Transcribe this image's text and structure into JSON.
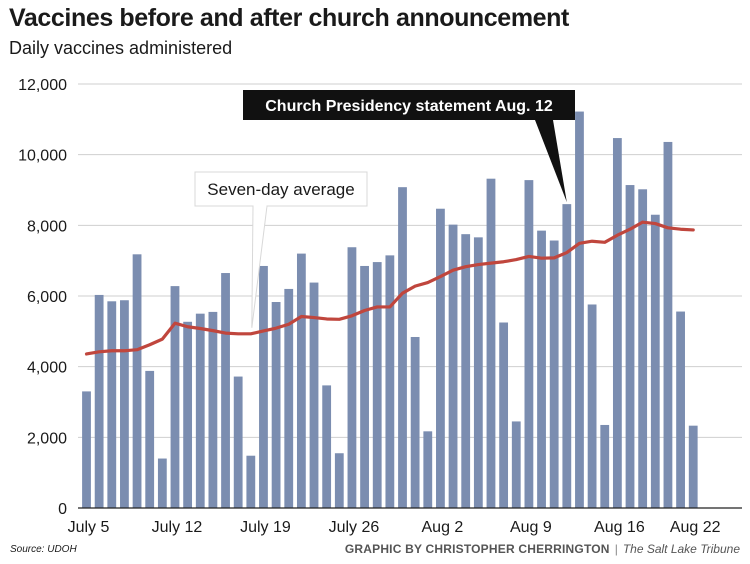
{
  "header": {
    "title": "Vaccines before and after church announcement",
    "subtitle": "Daily vaccines administered"
  },
  "footer": {
    "source": "Source: UDOH",
    "credit_author": "GRAPHIC BY CHRISTOPHER CHERRINGTON",
    "credit_separator": "|",
    "credit_publication": "The Salt Lake Tribune"
  },
  "colors": {
    "bar": "#7b8db0",
    "average_line": "#c0463d",
    "gridline": "#cfcfcf",
    "callout_dark_bg": "#111111"
  },
  "chart_data": {
    "type": "bar",
    "title": "Vaccines before and after church announcement",
    "subtitle": "Daily vaccines administered",
    "xlabel": "",
    "ylabel": "",
    "ylim": [
      0,
      12000
    ],
    "yticks": [
      0,
      2000,
      4000,
      6000,
      8000,
      10000,
      12000
    ],
    "ytick_labels": [
      "0",
      "2,000",
      "4,000",
      "6,000",
      "8,000",
      "10,000",
      "12,000"
    ],
    "grid": true,
    "x_labels": [
      {
        "label": "July 5",
        "index": 0
      },
      {
        "label": "July 12",
        "index": 7
      },
      {
        "label": "July 19",
        "index": 14
      },
      {
        "label": "July 26",
        "index": 21
      },
      {
        "label": "Aug 2",
        "index": 28
      },
      {
        "label": "Aug 9",
        "index": 35
      },
      {
        "label": "Aug 16",
        "index": 42
      },
      {
        "label": "Aug 22",
        "index": 48
      }
    ],
    "series": [
      {
        "name": "Daily vaccines administered",
        "type": "bar",
        "values": [
          3300,
          6030,
          5850,
          5880,
          7180,
          3880,
          1400,
          6280,
          5270,
          5500,
          5550,
          6650,
          3720,
          1480,
          6850,
          5830,
          6200,
          7200,
          6380,
          3470,
          1550,
          7380,
          6850,
          6960,
          7150,
          9080,
          4840,
          2170,
          8470,
          8020,
          7750,
          7660,
          9320,
          5250,
          2450,
          9280,
          7850,
          7570,
          8600,
          11220,
          5760,
          2350,
          10470,
          9140,
          9020,
          8300,
          10360,
          5560,
          2330
        ]
      },
      {
        "name": "Seven-day average",
        "type": "line",
        "values": [
          4360,
          4420,
          4450,
          4450,
          4480,
          4620,
          4780,
          5230,
          5130,
          5080,
          5020,
          4950,
          4930,
          4930,
          5010,
          5090,
          5200,
          5420,
          5390,
          5350,
          5340,
          5440,
          5590,
          5690,
          5690,
          6080,
          6280,
          6380,
          6550,
          6730,
          6830,
          6890,
          6930,
          6970,
          7030,
          7120,
          7070,
          7080,
          7230,
          7490,
          7550,
          7520,
          7720,
          7890,
          8090,
          8050,
          7930,
          7890,
          7870
        ]
      }
    ],
    "annotations": [
      {
        "text": "Seven-day average",
        "style": "light",
        "points_to_index": 13
      },
      {
        "text": "Church Presidency statement Aug. 12",
        "style": "dark",
        "points_to_index": 38
      }
    ]
  }
}
